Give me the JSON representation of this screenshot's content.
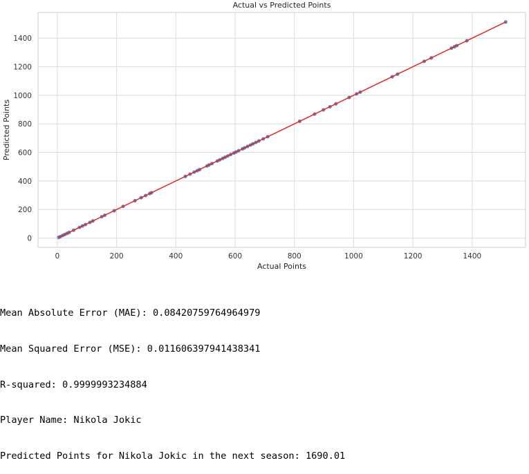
{
  "chart_data": {
    "type": "scatter",
    "title": "Actual vs Predicted Points",
    "xlabel": "Actual Points",
    "ylabel": "Predicted Points",
    "xlim": [
      -65,
      1580
    ],
    "ylim": [
      -65,
      1580
    ],
    "x_ticks": [
      0,
      200,
      400,
      600,
      800,
      1000,
      1200,
      1400
    ],
    "y_ticks": [
      0,
      200,
      400,
      600,
      800,
      1000,
      1200,
      1400
    ],
    "grid": true,
    "point_color": "#4c72b0",
    "fit_line_color": "#e8211d",
    "fit_line": {
      "x": [
        5,
        1513
      ],
      "y": [
        5,
        1513
      ]
    },
    "points": {
      "x": [
        5,
        10,
        18,
        25,
        33,
        40,
        55,
        75,
        85,
        95,
        110,
        120,
        150,
        160,
        192,
        222,
        262,
        283,
        298,
        312,
        318,
        432,
        448,
        462,
        472,
        480,
        505,
        512,
        522,
        540,
        548,
        558,
        566,
        575,
        585,
        596,
        603,
        612,
        625,
        632,
        642,
        652,
        660,
        670,
        680,
        695,
        710,
        818,
        868,
        898,
        920,
        940,
        985,
        1010,
        1022,
        1130,
        1148,
        1238,
        1262,
        1330,
        1340,
        1348,
        1382,
        1513
      ],
      "y": [
        5,
        10,
        18,
        25,
        33,
        40,
        55,
        75,
        85,
        95,
        110,
        120,
        150,
        160,
        192,
        222,
        262,
        283,
        298,
        312,
        318,
        432,
        448,
        462,
        472,
        480,
        505,
        512,
        522,
        540,
        548,
        558,
        566,
        575,
        585,
        596,
        603,
        612,
        625,
        632,
        642,
        652,
        660,
        670,
        680,
        695,
        710,
        818,
        868,
        898,
        920,
        940,
        985,
        1010,
        1022,
        1130,
        1148,
        1238,
        1262,
        1330,
        1340,
        1348,
        1382,
        1513
      ]
    }
  },
  "output_lines": {
    "mae": "Mean Absolute Error (MAE): 0.08420759764964979",
    "mse": "Mean Squared Error (MSE): 0.011606397941438341",
    "r2": "R-squared: 0.9999993234884",
    "player": "Player Name: Nikola Jokic",
    "prediction": "Predicted Points for Nikola Jokic in the next season: 1690.01"
  }
}
